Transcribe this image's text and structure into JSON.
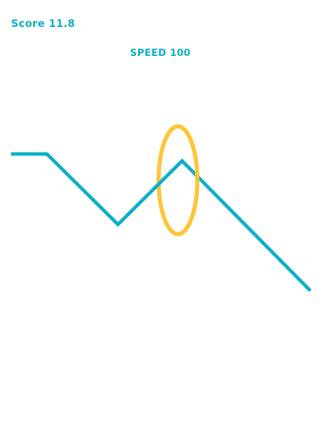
{
  "hud": {
    "score_text": "Score 11.8",
    "speed_text": "SPEED 100"
  },
  "colors": {
    "background": "#ffffff",
    "accent": "#0BAFC8",
    "ring": "#FFC53A"
  },
  "game": {
    "track": "zigzag-line",
    "gate": "ring-gate"
  }
}
